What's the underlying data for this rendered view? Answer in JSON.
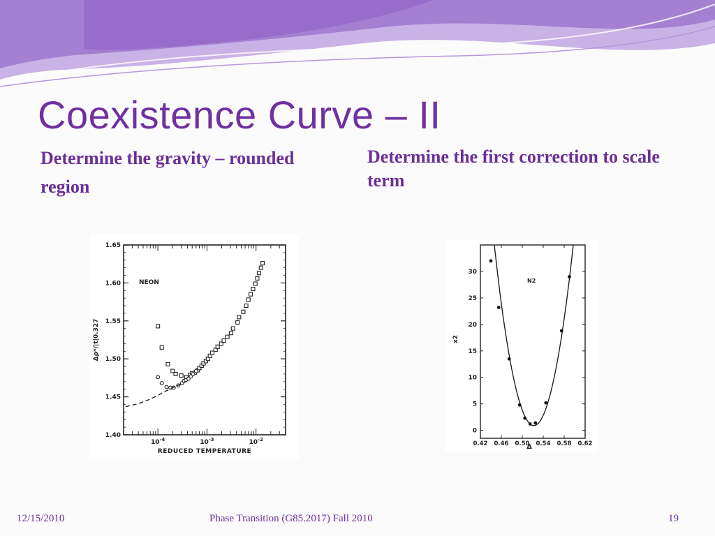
{
  "slide": {
    "title": "Coexistence Curve – II",
    "left_heading": "Determine the gravity – rounded region",
    "right_heading": "Determine the first correction to scale term",
    "footer_date": "12/15/2010",
    "footer_center": "Phase Transition (G85.2017) Fall 2010",
    "footer_page": "19"
  },
  "colors": {
    "accent": "#7030a0",
    "banner_dark": "#8e5cc4",
    "banner_light": "#c9b2e6"
  },
  "chart_data": [
    {
      "type": "scatter",
      "annotation": "NEON",
      "xlabel": "REDUCED TEMPERATURE",
      "ylabel": "Δρ*/|t|0.327",
      "xscale": "log",
      "xlim": [
        2e-05,
        0.04
      ],
      "ylim": [
        1.4,
        1.65
      ],
      "yticks": [
        "1.40",
        "1.45",
        "1.50",
        "1.55",
        "1.60",
        "1.65"
      ],
      "xticks": [
        "10-4",
        "10-3",
        "10-2"
      ],
      "series": [
        {
          "marker": "square",
          "points": [
            [
              0.0001,
              1.543
            ],
            [
              0.00012,
              1.515
            ],
            [
              0.00016,
              1.493
            ],
            [
              0.0002,
              1.484
            ],
            [
              0.00023,
              1.48
            ],
            [
              0.0003,
              1.478
            ],
            [
              0.00038,
              1.476
            ],
            [
              0.00045,
              1.479
            ],
            [
              0.0005,
              1.481
            ],
            [
              0.00057,
              1.482
            ],
            [
              0.00065,
              1.485
            ],
            [
              0.0007,
              1.488
            ],
            [
              0.00078,
              1.491
            ],
            [
              0.00085,
              1.494
            ],
            [
              0.00095,
              1.497
            ],
            [
              0.00105,
              1.5
            ],
            [
              0.00115,
              1.504
            ],
            [
              0.00128,
              1.508
            ],
            [
              0.0015,
              1.512
            ],
            [
              0.00165,
              1.516
            ],
            [
              0.00195,
              1.52
            ],
            [
              0.0022,
              1.524
            ],
            [
              0.0026,
              1.529
            ],
            [
              0.0031,
              1.534
            ],
            [
              0.0034,
              1.54
            ],
            [
              0.0042,
              1.548
            ],
            [
              0.0045,
              1.555
            ],
            [
              0.0055,
              1.562
            ],
            [
              0.0063,
              1.57
            ],
            [
              0.007,
              1.578
            ],
            [
              0.0078,
              1.585
            ],
            [
              0.0087,
              1.592
            ],
            [
              0.0097,
              1.599
            ],
            [
              0.0106,
              1.606
            ],
            [
              0.0115,
              1.613
            ],
            [
              0.0126,
              1.62
            ],
            [
              0.0136,
              1.626
            ]
          ]
        },
        {
          "marker": "circle",
          "points": [
            [
              0.0001,
              1.476
            ],
            [
              0.00012,
              1.468
            ],
            [
              0.00015,
              1.463
            ],
            [
              0.00018,
              1.462
            ],
            [
              0.00021,
              1.462
            ],
            [
              0.00026,
              1.465
            ],
            [
              0.00031,
              1.468
            ],
            [
              0.00034,
              1.471
            ],
            [
              0.00037,
              1.472
            ],
            [
              0.00042,
              1.474
            ],
            [
              0.00047,
              1.477
            ],
            [
              0.00052,
              1.48
            ],
            [
              0.0006,
              1.484
            ]
          ]
        },
        {
          "style": "dashed",
          "points": [
            [
              2.2e-05,
              1.437
            ],
            [
              4e-05,
              1.441
            ],
            [
              7e-05,
              1.447
            ],
            [
              0.0001,
              1.452
            ],
            [
              0.00015,
              1.458
            ],
            [
              0.0002,
              1.462
            ],
            [
              0.0003,
              1.467
            ],
            [
              0.0004,
              1.471
            ]
          ]
        }
      ]
    },
    {
      "type": "line",
      "annotation": "N2",
      "xlabel": "Δ",
      "ylabel": "x2",
      "xlim": [
        0.42,
        0.62
      ],
      "ylim": [
        -1.5,
        35
      ],
      "xticks": [
        "0.42",
        "0.46",
        "0.50",
        "0.54",
        "0.58",
        "0.62"
      ],
      "yticks": [
        "0",
        "5",
        "10",
        "15",
        "20",
        "25",
        "30"
      ],
      "points": [
        [
          0.44,
          32.0
        ],
        [
          0.455,
          23.2
        ],
        [
          0.475,
          13.5
        ],
        [
          0.495,
          4.8
        ],
        [
          0.505,
          2.3
        ],
        [
          0.515,
          1.2
        ],
        [
          0.525,
          1.4
        ],
        [
          0.545,
          5.2
        ],
        [
          0.575,
          18.8
        ],
        [
          0.59,
          29.0
        ]
      ],
      "fit_curve": {
        "vertex_x": 0.522,
        "vertex_y": 0.9,
        "a": 6000
      }
    }
  ]
}
